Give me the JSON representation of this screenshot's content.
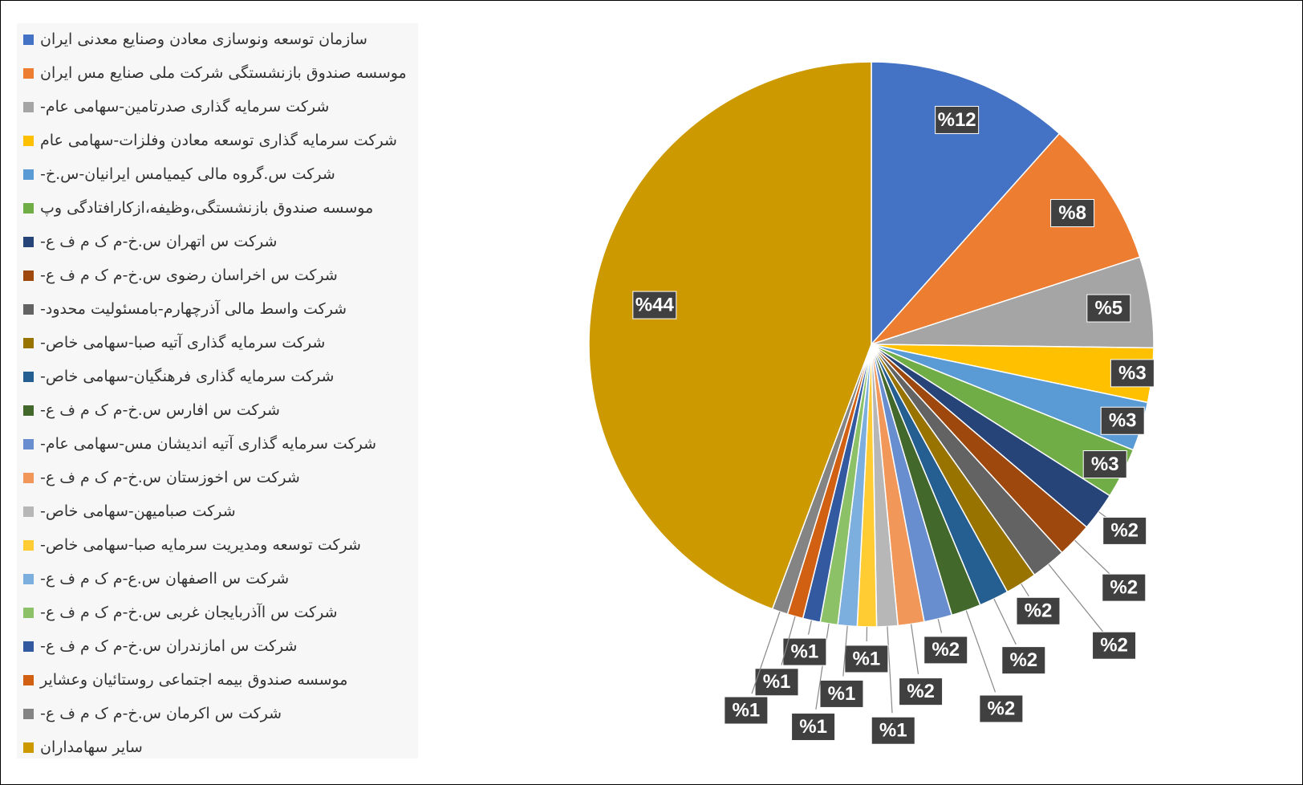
{
  "chart_data": {
    "type": "pie",
    "categories": [
      "سازمان توسعه ونوسازی معادن وصنایع معدنی ایران",
      "موسسه صندوق بازنشستگی شرکت ملی صنایع مس ایران",
      "شرکت سرمایه گذاری صدرتامین-سهامی عام-",
      "شرکت سرمایه گذاری توسعه معادن وفلزات-سهامی عام",
      "شرکت س.گروه مالی کیمیامس ایرانیان-س.خ-",
      "موسسه صندوق بازنشستگی،وظیفه،ازکارافتادگی وپ",
      "شرکت س اتهران س.خ-م ک م ف ع-",
      "شرکت س اخراسان رضوی س.خ-م ک م ف ع-",
      "شرکت واسط مالی آذرچهارم-بامسئولیت محدود-",
      "شرکت سرمایه گذاری آتیه صبا-سهامی خاص-",
      "شرکت سرمایه گذاری فرهنگیان-سهامی خاص-",
      "شرکت س افارس س.خ-م ک م ف ع-",
      "شرکت سرمایه گذاری آتیه اندیشان مس-سهامی عام-",
      "شرکت س اخوزستان س.خ-م ک م ف ع-",
      "شرکت صبامیهن-سهامی خاص-",
      "شرکت توسعه ومدیریت سرمایه صبا-سهامی خاص-",
      "شرکت س ااصفهان س.ع-م ک م ف ع-",
      "شرکت س اآذربایجان غربی س.خ-م ک م ف ع-",
      "شرکت س امازندران س.خ-م ک م ف ع-",
      "موسسه صندوق بیمه اجتماعی روستائیان وعشایر",
      "شرکت س اکرمان س.خ-م ک م ف ع-",
      "سایر سهامداران"
    ],
    "values": [
      11.6,
      8.4,
      5.2,
      3.1,
      2.8,
      2.9,
      2.2,
      2.0,
      2.0,
      1.8,
      1.7,
      1.7,
      1.6,
      1.5,
      1.2,
      1.1,
      1.1,
      1.0,
      1.0,
      0.9,
      0.9,
      44.3
    ],
    "value_labels": [
      "%12",
      "%8",
      "%5",
      "%3",
      "%3",
      "%3",
      "%2",
      "%2",
      "%2",
      "%2",
      "%2",
      "%2",
      "%2",
      "%2",
      "%1",
      "%1",
      "%1",
      "%1",
      "%1",
      "%1",
      "%1",
      "%44"
    ],
    "colors": [
      "#4472c4",
      "#ed7d31",
      "#a5a5a5",
      "#ffc000",
      "#5b9bd5",
      "#70ad47",
      "#264478",
      "#9e480e",
      "#636363",
      "#997300",
      "#255e91",
      "#43682b",
      "#698ed0",
      "#f1975a",
      "#b7b7b7",
      "#ffcd33",
      "#7cafdd",
      "#8cc168",
      "#335aa1",
      "#d26012",
      "#848484",
      "#cc9900"
    ]
  }
}
